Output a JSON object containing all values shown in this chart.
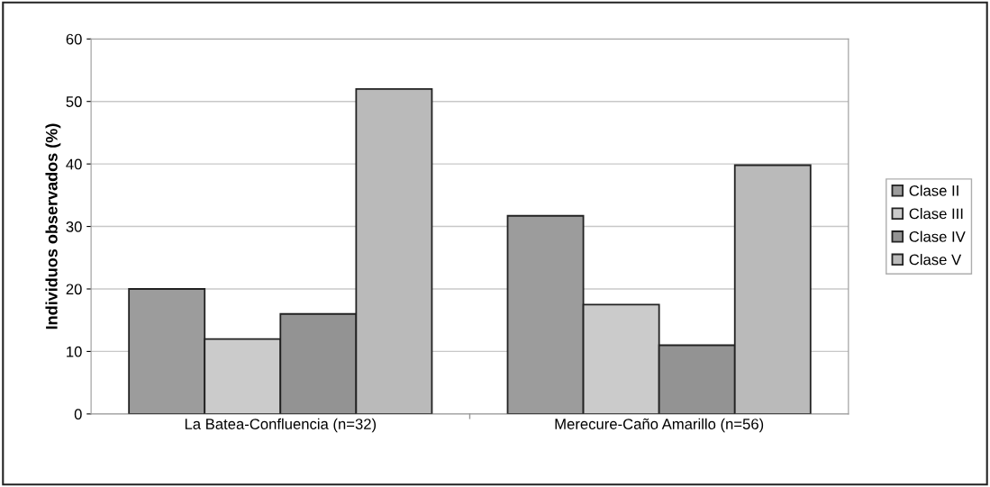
{
  "chart_data": {
    "type": "bar",
    "ylabel": "Individuos observados (%)",
    "categories": [
      "La Batea-Confluencia (n=32)",
      "Merecure-Caño Amarillo (n=56)"
    ],
    "series": [
      {
        "name": "Clase II",
        "color": "#9c9c9c",
        "values": [
          20,
          31.7
        ]
      },
      {
        "name": "Clase III",
        "color": "#cbcbcb",
        "values": [
          12,
          17.5
        ]
      },
      {
        "name": "Clase IV",
        "color": "#939393",
        "values": [
          16,
          11
        ]
      },
      {
        "name": "Clase V",
        "color": "#bababa",
        "values": [
          52,
          39.8
        ]
      }
    ],
    "ylim": [
      0,
      60
    ],
    "yticks": [
      0,
      10,
      20,
      30,
      40,
      50,
      60
    ],
    "grid": "y",
    "legend": "right"
  }
}
